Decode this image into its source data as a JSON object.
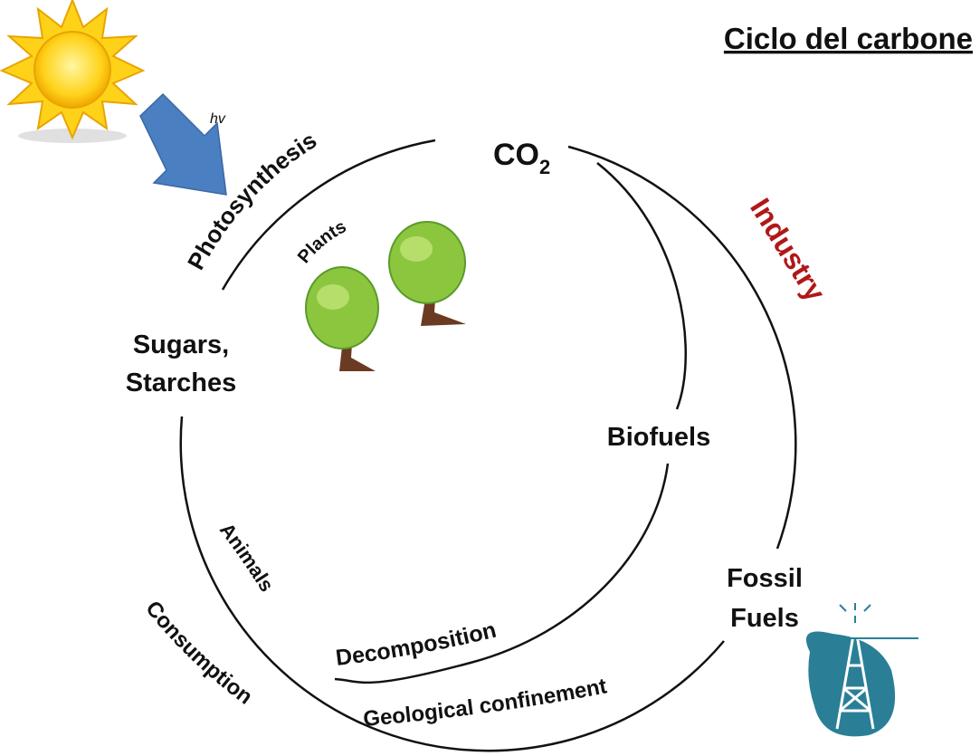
{
  "header": {
    "title": "Ciclo del carbone"
  },
  "light": "hv",
  "nodes": {
    "co2": {
      "text": "CO",
      "subscript": "2"
    },
    "sugars": [
      "Sugars,",
      "Starches"
    ],
    "biofuels": "Biofuels",
    "fossil": [
      "Fossil",
      "Fuels"
    ]
  },
  "processes": {
    "photosynthesis": "Photosynthesis",
    "plants": "Plants",
    "industry": "Industry",
    "animals": "Animals",
    "consumption": "Consumption",
    "decomposition": "Decomposition",
    "geological": "Geological confinement"
  }
}
